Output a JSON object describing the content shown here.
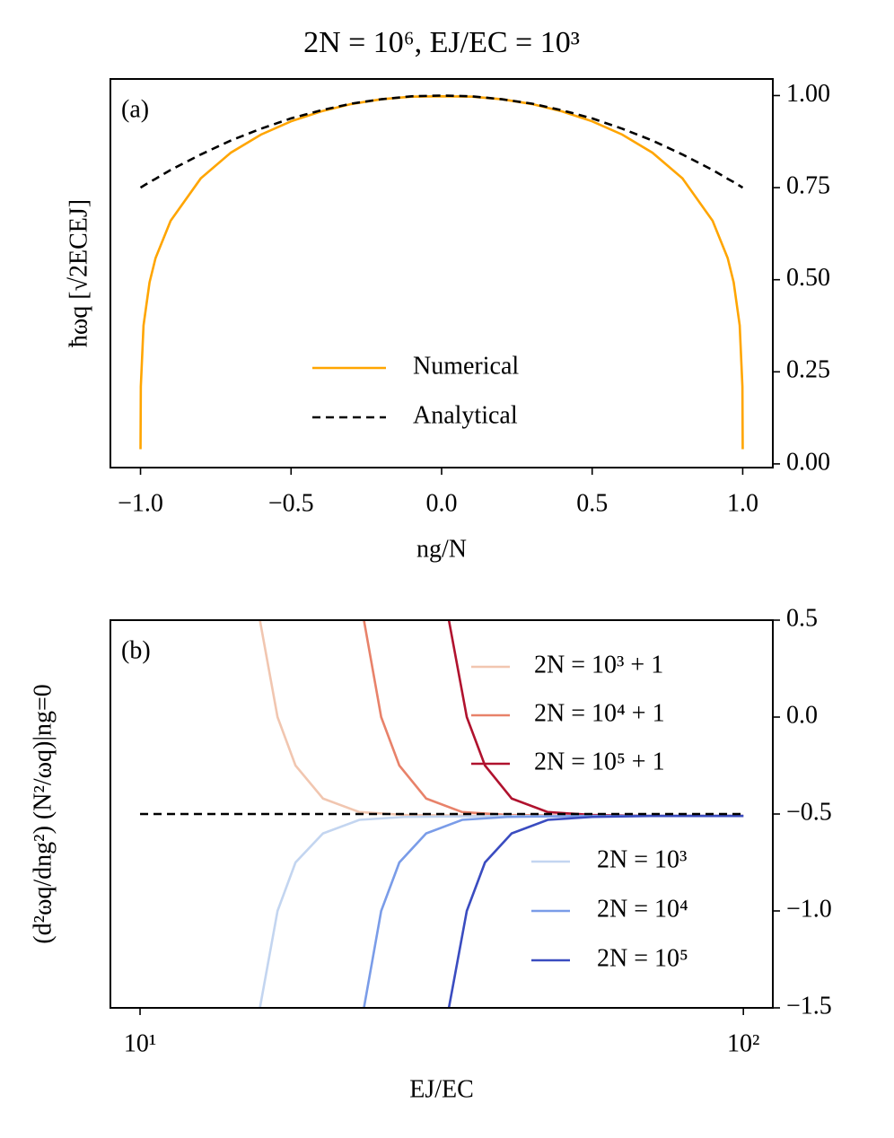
{
  "chart_data": [
    {
      "type": "line",
      "title": "2N = 10⁶,    EJ/EC = 10³",
      "panel_label": "(a)",
      "xlabel": "ng/N",
      "ylabel": "ħωq  [√2ECEJ]",
      "x": [
        -1,
        -0.999,
        -0.99,
        -0.97,
        -0.95,
        -0.9,
        -0.8,
        -0.7,
        -0.6,
        -0.5,
        -0.4,
        -0.3,
        -0.2,
        -0.1,
        0,
        0.1,
        0.2,
        0.3,
        0.4,
        0.5,
        0.6,
        0.7,
        0.8,
        0.9,
        0.95,
        0.97,
        0.99,
        0.999,
        1
      ],
      "series": [
        {
          "name": "Numerical",
          "color": "#ffa500",
          "linestyle": "solid",
          "values": [
            0.04,
            0.21,
            0.376,
            0.493,
            0.559,
            0.66,
            0.775,
            0.845,
            0.894,
            0.93,
            0.957,
            0.977,
            0.99,
            0.997,
            0.998,
            0.997,
            0.99,
            0.977,
            0.957,
            0.93,
            0.894,
            0.845,
            0.775,
            0.66,
            0.559,
            0.493,
            0.376,
            0.21,
            0.04
          ]
        },
        {
          "name": "Analytical",
          "color": "#000000",
          "linestyle": "dashed",
          "values": [
            0.75,
            0.7505,
            0.755,
            0.765,
            0.774,
            0.798,
            0.84,
            0.878,
            0.91,
            0.938,
            0.96,
            0.978,
            0.99,
            0.998,
            1,
            0.998,
            0.99,
            0.978,
            0.96,
            0.938,
            0.91,
            0.878,
            0.84,
            0.798,
            0.774,
            0.765,
            0.755,
            0.7505,
            0.75
          ]
        }
      ],
      "xlim": [
        -1.1,
        1.1
      ],
      "xticks": [
        {
          "value": -1,
          "label": "−1.0"
        },
        {
          "value": -0.5,
          "label": "−0.5"
        },
        {
          "value": 0,
          "label": "0.0"
        },
        {
          "value": 0.5,
          "label": "0.5"
        },
        {
          "value": 1,
          "label": "1.0"
        }
      ],
      "ylim": [
        -0.01,
        1.045
      ],
      "yticks": [
        {
          "value": 0,
          "label": "0.00"
        },
        {
          "value": 0.25,
          "label": "0.25"
        },
        {
          "value": 0.5,
          "label": "0.50"
        },
        {
          "value": 0.75,
          "label": "0.75"
        },
        {
          "value": 1,
          "label": "1.00"
        }
      ],
      "yaxis_side": "right",
      "legend": "lower center"
    },
    {
      "type": "line",
      "panel_label": "(b)",
      "xlabel": "EJ/EC",
      "ylabel": "(d²ωq/dng²) (N²/ωq)|ng=0",
      "xscale": "log",
      "series": [
        {
          "name": "2N = 10³ + 1",
          "color": "#f1c6b0",
          "linestyle": "solid",
          "x": [
            15.8,
            16.9,
            18.1,
            20.1,
            23.1,
            27.4,
            40,
            100
          ],
          "values": [
            0.5,
            0.0,
            -0.25,
            -0.42,
            -0.49,
            -0.505,
            -0.51,
            -0.51
          ]
        },
        {
          "name": "2N = 10⁴ + 1",
          "color": "#e8826a",
          "linestyle": "solid",
          "x": [
            23.5,
            25.1,
            26.9,
            29.8,
            34.2,
            40.6,
            55,
            100
          ],
          "values": [
            0.5,
            0.0,
            -0.25,
            -0.42,
            -0.49,
            -0.505,
            -0.51,
            -0.51
          ]
        },
        {
          "name": "2N = 10⁵ + 1",
          "color": "#b0122e",
          "linestyle": "solid",
          "x": [
            32.5,
            34.8,
            37.3,
            41.3,
            47.4,
            56.2,
            70,
            100
          ],
          "values": [
            0.5,
            0.0,
            -0.25,
            -0.42,
            -0.49,
            -0.505,
            -0.51,
            -0.51
          ]
        },
        {
          "name": "2N = 10³",
          "color": "#c3d5f0",
          "linestyle": "solid",
          "x": [
            15.8,
            16.9,
            18.1,
            20.1,
            23.1,
            27.4,
            40,
            100
          ],
          "values": [
            -1.5,
            -1.0,
            -0.75,
            -0.6,
            -0.53,
            -0.515,
            -0.51,
            -0.51
          ]
        },
        {
          "name": "2N = 10⁴",
          "color": "#7a9ce8",
          "linestyle": "solid",
          "x": [
            23.5,
            25.1,
            26.9,
            29.8,
            34.2,
            40.6,
            55,
            100
          ],
          "values": [
            -1.5,
            -1.0,
            -0.75,
            -0.6,
            -0.53,
            -0.515,
            -0.51,
            -0.51
          ]
        },
        {
          "name": "2N = 10⁵",
          "color": "#3a4cc0",
          "linestyle": "solid",
          "x": [
            32.5,
            34.8,
            37.3,
            41.3,
            47.4,
            56.2,
            70,
            100
          ],
          "values": [
            -1.5,
            -1.0,
            -0.75,
            -0.6,
            -0.53,
            -0.515,
            -0.51,
            -0.51
          ]
        },
        {
          "color": "#000000",
          "linestyle": "dashed",
          "x": [
            10,
            100
          ],
          "values": [
            -0.5,
            -0.5
          ]
        }
      ],
      "xlim": [
        8.93,
        111.9
      ],
      "xticks": [
        {
          "value": 10,
          "label": "10¹"
        },
        {
          "value": 100,
          "label": "10²"
        }
      ],
      "ylim": [
        -1.5,
        0.5
      ],
      "yticks": [
        {
          "value": -1.5,
          "label": "−1.5"
        },
        {
          "value": -1,
          "label": "−1.0"
        },
        {
          "value": -0.5,
          "label": "−0.5"
        },
        {
          "value": 0,
          "label": "0.0"
        },
        0.5
      ],
      "yaxis_side": "right",
      "legend": "right"
    }
  ]
}
